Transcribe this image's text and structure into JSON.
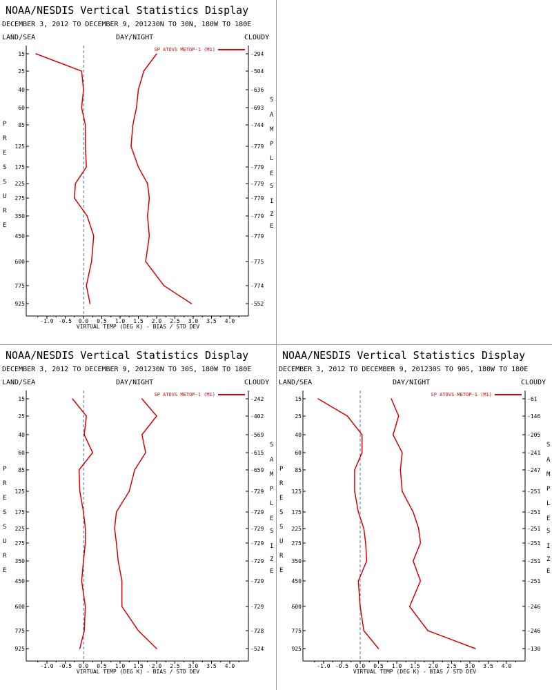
{
  "colors": {
    "series": "#d40000",
    "zero_line": "#4a6fa5",
    "axis": "#000000",
    "separator": "#a0a0a0"
  },
  "panels": [
    {
      "title": "NOAA/NESDIS Vertical Statistics Display",
      "subtitle": "DECEMBER 3, 2012 TO DECEMBER 9, 201230N TO 30N, 180W TO 180E",
      "left_header": "LAND/SEA",
      "center_header": "DAY/NIGHT",
      "right_header": "CLOUDY",
      "legend": "SP ATOVS METOP-1 (M1)",
      "y_axis_label": "PRESSURE",
      "right_axis_label": "SAMPLE SIZE",
      "x_axis_label": "VIRTUAL TEMP (DEG K) - BIAS / STD DEV",
      "sample_size": [
        "294",
        "504",
        "636",
        "693",
        "744",
        "779",
        "779",
        "779",
        "779",
        "779",
        "779",
        "775",
        "774",
        "552"
      ]
    },
    {
      "title": "NOAA/NESDIS Vertical Statistics Display",
      "subtitle": "DECEMBER 3, 2012 TO DECEMBER 9, 201230N TO 30S, 180W TO 180E",
      "left_header": "LAND/SEA",
      "center_header": "DAY/NIGHT",
      "right_header": "CLOUDY",
      "legend": "SP ATOVS METOP-1 (M1)",
      "y_axis_label": "PRESSURE",
      "right_axis_label": "SAMPLE SIZE",
      "x_axis_label": "VIRTUAL TEMP (DEG K) - BIAS / STD DEV",
      "sample_size": [
        "242",
        "402",
        "569",
        "615",
        "659",
        "729",
        "729",
        "729",
        "729",
        "729",
        "729",
        "729",
        "728",
        "524"
      ]
    },
    {
      "title": "NOAA/NESDIS Vertical Statistics Display",
      "subtitle": "DECEMBER 3, 2012 TO DECEMBER 9, 201230S TO 90S, 180W TO 180E",
      "left_header": "LAND/SEA",
      "center_header": "DAY/NIGHT",
      "right_header": "CLOUDY",
      "legend": "SP ATOVS METOP-1 (M1)",
      "y_axis_label": "PRESSURE",
      "right_axis_label": "SAMPLE SIZE",
      "x_axis_label": "VIRTUAL TEMP (DEG K) - BIAS / STD DEV",
      "sample_size": [
        "61",
        "146",
        "205",
        "241",
        "247",
        "251",
        "251",
        "251",
        "251",
        "251",
        "251",
        "246",
        "246",
        "130"
      ]
    }
  ],
  "chart_data": [
    {
      "type": "line",
      "title": "NOAA/NESDIS Vertical Statistics Display",
      "subtitle": "DECEMBER 3, 2012 TO DECEMBER 9, 201230N TO 30N, 180W TO 180E",
      "xlabel": "VIRTUAL TEMP (DEG K) - BIAS / STD DEV",
      "ylabel": "PRESSURE",
      "xlim": [
        -1.5,
        4.5
      ],
      "x_ticks": [
        "-1.0",
        "-0.5",
        "0.0",
        "0.5",
        "1.0",
        "1.5",
        "2.0",
        "2.5",
        "3.0",
        "3.5",
        "4.0"
      ],
      "pressure_levels": [
        "15",
        "25",
        "40",
        "60",
        "85",
        "125",
        "175",
        "225",
        "275",
        "350",
        "450",
        "600",
        "775",
        "925"
      ],
      "series": [
        {
          "values": [
            -1.3,
            -0.05,
            0.0,
            -0.05,
            0.05,
            0.05,
            0.08,
            -0.22,
            -0.25,
            0.1,
            0.28,
            0.22,
            0.08,
            0.18
          ]
        },
        {
          "name": "SP ATOVS METOP-1 (M1)",
          "values": [
            2.0,
            1.65,
            1.5,
            1.45,
            1.35,
            1.3,
            1.5,
            1.75,
            1.8,
            1.75,
            1.8,
            1.7,
            2.2,
            2.95
          ]
        }
      ]
    },
    {
      "type": "line",
      "title": "NOAA/NESDIS Vertical Statistics Display",
      "subtitle": "DECEMBER 3, 2012 TO DECEMBER 9, 201230N TO 30S, 180W TO 180E",
      "xlabel": "VIRTUAL TEMP (DEG K) - BIAS / STD DEV",
      "ylabel": "PRESSURE",
      "xlim": [
        -1.5,
        4.5
      ],
      "x_ticks": [
        "-1.0",
        "-0.5",
        "0.0",
        "0.5",
        "1.0",
        "1.5",
        "2.0",
        "2.5",
        "3.0",
        "3.5",
        "4.0"
      ],
      "pressure_levels": [
        "15",
        "25",
        "40",
        "60",
        "85",
        "125",
        "175",
        "225",
        "275",
        "350",
        "450",
        "600",
        "775",
        "925"
      ],
      "series": [
        {
          "values": [
            -0.3,
            0.08,
            0.02,
            0.25,
            -0.12,
            -0.1,
            0.0,
            0.05,
            0.05,
            0.0,
            -0.05,
            0.05,
            0.02,
            -0.1
          ]
        },
        {
          "name": "SP ATOVS METOP-1 (M1)",
          "values": [
            1.6,
            2.0,
            1.6,
            1.7,
            1.4,
            1.25,
            0.9,
            0.85,
            0.9,
            0.95,
            1.05,
            1.05,
            1.5,
            2.0
          ]
        }
      ]
    },
    {
      "type": "line",
      "title": "NOAA/NESDIS Vertical Statistics Display",
      "subtitle": "DECEMBER 3, 2012 TO DECEMBER 9, 201230S TO 90S, 180W TO 180E",
      "xlabel": "VIRTUAL TEMP (DEG K) - BIAS / STD DEV",
      "ylabel": "PRESSURE",
      "xlim": [
        -1.5,
        4.5
      ],
      "x_ticks": [
        "-1.0",
        "-0.5",
        "0.0",
        "0.5",
        "1.0",
        "1.5",
        "2.0",
        "2.5",
        "3.0",
        "3.5",
        "4.0"
      ],
      "pressure_levels": [
        "15",
        "25",
        "40",
        "60",
        "85",
        "125",
        "175",
        "225",
        "275",
        "350",
        "450",
        "600",
        "775",
        "925"
      ],
      "series": [
        {
          "values": [
            -1.15,
            -0.35,
            0.05,
            0.05,
            -0.15,
            -0.15,
            -0.05,
            0.1,
            0.15,
            0.18,
            -0.05,
            0.0,
            0.1,
            0.5
          ]
        },
        {
          "name": "SP ATOVS METOP-1 (M1)",
          "values": [
            0.85,
            1.05,
            0.9,
            1.15,
            1.1,
            1.15,
            1.45,
            1.6,
            1.65,
            1.45,
            1.65,
            1.35,
            1.85,
            3.15
          ]
        }
      ]
    }
  ]
}
